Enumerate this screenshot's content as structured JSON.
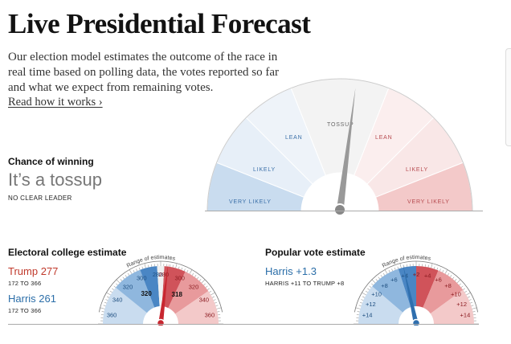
{
  "header": {
    "title": "Live Presidential Forecast",
    "intro": "Our election model estimates the outcome of the race in real time based on polling data, the votes reported so far and what we expect from remaining votes.",
    "read_link": "Read how it works ›"
  },
  "chance": {
    "label": "Chance of winning",
    "verdict": "It’s a tossup",
    "subverdict": "NO CLEAR LEADER",
    "needle_value": 0.54,
    "segments": {
      "very_likely": "VERY LIKELY",
      "likely": "LIKELY",
      "lean": "LEAN",
      "tossup": "TOSSUP"
    }
  },
  "electoral": {
    "label": "Electoral college estimate",
    "range_label": "Range of estimates",
    "trump": {
      "text": "Trump 277",
      "range": "172 TO 366"
    },
    "harris": {
      "text": "Harris 261",
      "range": "172 TO 366"
    },
    "ticks_blue": [
      "360",
      "340",
      "320",
      "300",
      "280"
    ],
    "ticks_red": [
      "280",
      "300",
      "320",
      "340",
      "360"
    ],
    "inner_left": "320",
    "inner_right": "318",
    "needle_value": 0.54
  },
  "popular": {
    "label": "Popular vote estimate",
    "range_label": "Range of estimates",
    "harris": {
      "text": "Harris +1.3",
      "range": "HARRIS +11 TO TRUMP +8"
    },
    "ticks_blue": [
      "+14",
      "+12",
      "+10",
      "+8",
      "+6",
      "+4",
      "+2"
    ],
    "ticks_red": [
      "+2",
      "+4",
      "+6",
      "+8",
      "+10",
      "+12",
      "+14"
    ],
    "needle_value": 0.43
  },
  "colors": {
    "blue_dark": "#4a86c4",
    "blue_mid": "#8fb7de",
    "blue_light": "#c9dcef",
    "blue_faint": "#e7eff8",
    "red_dark": "#d0535a",
    "red_mid": "#e89a9c",
    "red_light": "#f3c9c9",
    "red_faint": "#f9e7e7",
    "tossup": "#f3f3f3",
    "needle_gray": "#999999",
    "needle_red": "#c8262f",
    "needle_blue": "#2f6fae",
    "trump_red": "#c0392b",
    "harris_blue": "#2b6ea8"
  }
}
